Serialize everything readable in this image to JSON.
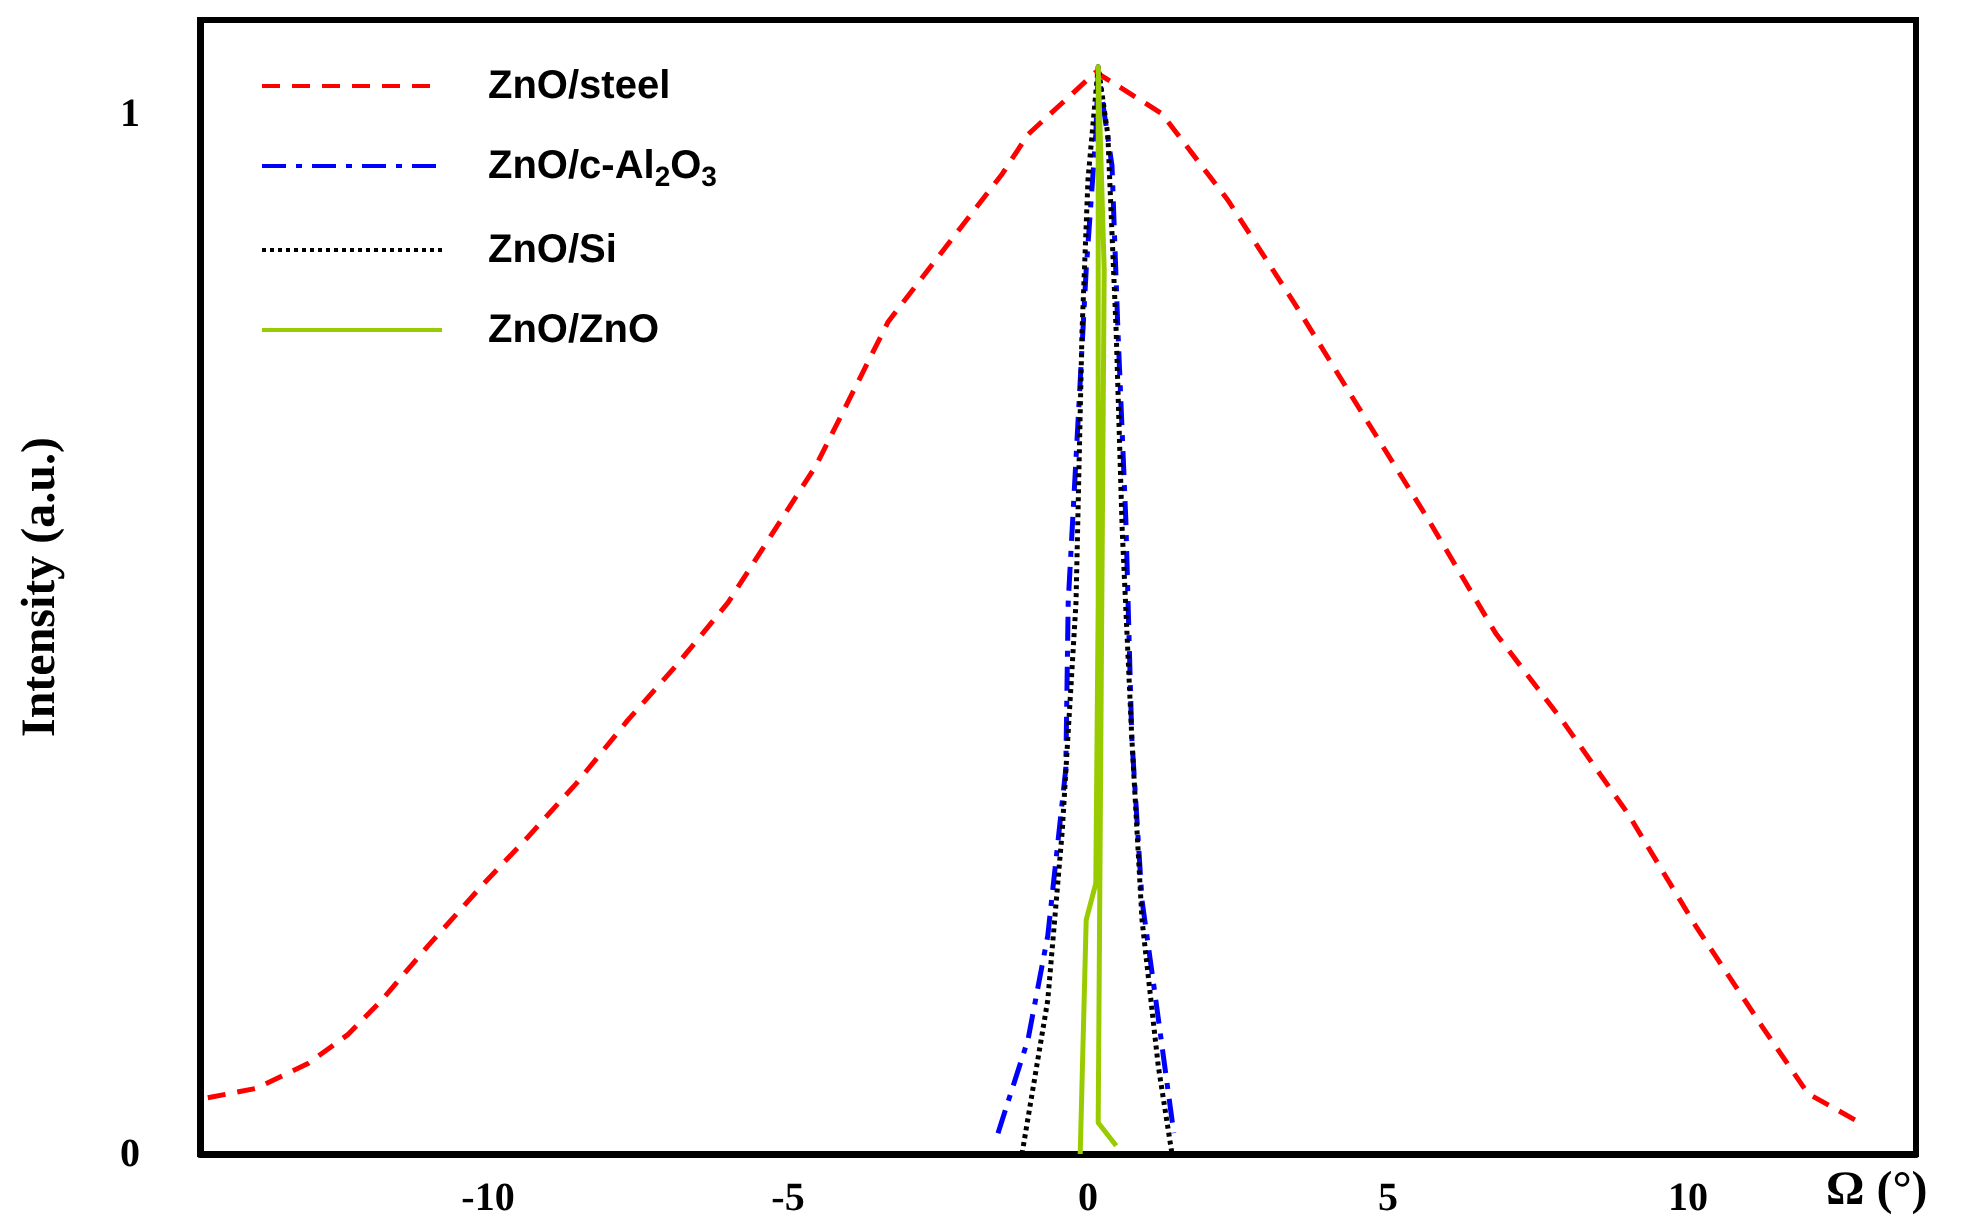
{
  "chart_data": {
    "type": "line",
    "xlabel": "Ω (°)",
    "ylabel": "Intensity (a.u.)",
    "xlim": [
      -14.8,
      13.8
    ],
    "xticks": [
      -10,
      -5,
      0,
      5,
      10
    ],
    "ylim": [
      0,
      1.09
    ],
    "yticks": [
      0,
      1
    ],
    "grid": false,
    "legend": "top left",
    "marker": "none",
    "series": [
      {
        "name": "ZnO/steel",
        "color": "#ff0000",
        "line_style": "dashed",
        "x": [
          -14.67,
          -13.87,
          -13.0,
          -12.33,
          -11.77,
          -11.0,
          -10.1,
          -9.33,
          -8.53,
          -7.67,
          -6.87,
          -6.0,
          -4.53,
          -3.33,
          -2.1,
          -1.43,
          -1.0,
          0.13,
          1.23,
          2.33,
          3.47,
          4.57,
          5.67,
          6.8,
          7.9,
          9.0,
          10.13,
          11.23,
          12.0,
          12.9
        ],
        "values": [
          0.054,
          0.063,
          0.087,
          0.115,
          0.148,
          0.2,
          0.258,
          0.305,
          0.356,
          0.417,
          0.469,
          0.53,
          0.662,
          0.8,
          0.892,
          0.942,
          0.98,
          1.04,
          1.0,
          0.917,
          0.815,
          0.712,
          0.61,
          0.5,
          0.417,
          0.327,
          0.219,
          0.123,
          0.058,
          0.029
        ]
      },
      {
        "name": "ZnO/c-Al$_{2}$O$_{3}$",
        "color": "#0000ff",
        "line_style": "dashdot",
        "x": [
          -1.5,
          -1.0,
          -0.67,
          -0.37,
          -0.33,
          -0.17,
          -0.03,
          0.13,
          0.17,
          0.4,
          0.5,
          0.63,
          0.73,
          0.9,
          1.13,
          1.43
        ],
        "values": [
          0.02,
          0.11,
          0.21,
          0.37,
          0.53,
          0.7,
          0.85,
          0.98,
          1.04,
          0.95,
          0.79,
          0.61,
          0.4,
          0.244,
          0.148,
          0.02
        ]
      },
      {
        "name": "ZnO/Si",
        "color": "#000000",
        "line_style": "dotted",
        "x": [
          -1.1,
          -0.67,
          -0.43,
          -0.2,
          -0.1,
          0.0,
          0.17,
          0.33,
          0.47,
          0.57,
          0.73,
          0.9,
          1.17,
          1.4
        ],
        "values": [
          0.0,
          0.148,
          0.31,
          0.53,
          0.79,
          0.937,
          1.045,
          0.98,
          0.79,
          0.6,
          0.4,
          0.225,
          0.085,
          0.0
        ]
      },
      {
        "name": "ZnO/ZnO",
        "color": "#99cc00",
        "line_style": "solid",
        "x": [
          -0.13,
          -0.03,
          0.13,
          0.17,
          0.17,
          0.27,
          0.23,
          0.17,
          0.47
        ],
        "values": [
          0.0,
          0.225,
          0.26,
          0.53,
          1.045,
          0.85,
          0.53,
          0.03,
          0.008
        ]
      }
    ]
  }
}
